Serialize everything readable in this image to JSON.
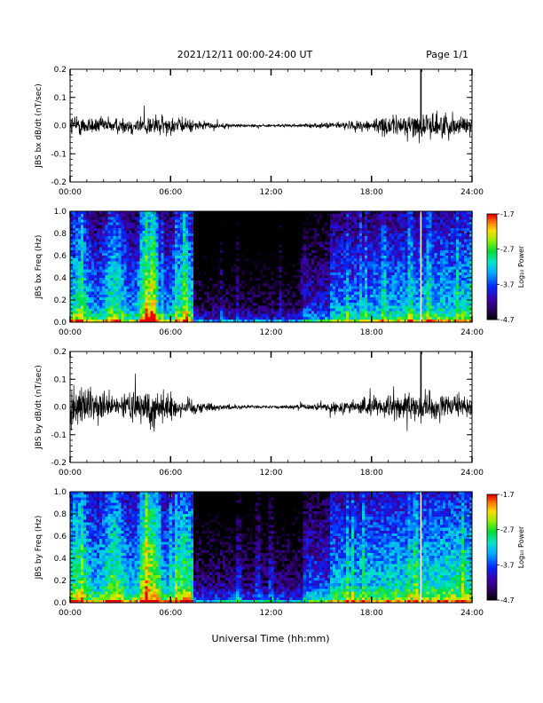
{
  "header": {
    "date_range": "2021/12/11  00:00-24:00 UT",
    "page": "Page 1/1"
  },
  "footer": {
    "xlabel": "Universal Time (hh:mm)"
  },
  "chart_data": [
    {
      "type": "line",
      "ylabel": "JBS bx dB/dt (nT/sec)",
      "xlim": [
        0,
        24
      ],
      "ylim": [
        -0.2,
        0.2
      ],
      "yticks": [
        "0.2",
        "0.1",
        "0.0",
        "-0.1",
        "-0.2"
      ],
      "xticks": [
        "00:00",
        "06:00",
        "12:00",
        "18:00",
        "24:00"
      ],
      "envelope_hours": [
        0,
        1,
        2,
        3,
        4,
        5,
        6,
        7,
        8,
        9,
        10,
        11,
        12,
        13,
        14,
        15,
        16,
        17,
        18,
        19,
        20,
        21,
        22,
        23,
        24
      ],
      "envelope_amplitude": [
        0.035,
        0.03,
        0.025,
        0.025,
        0.03,
        0.035,
        0.028,
        0.022,
        0.012,
        0.008,
        0.006,
        0.005,
        0.004,
        0.005,
        0.005,
        0.008,
        0.012,
        0.015,
        0.022,
        0.03,
        0.035,
        0.04,
        0.04,
        0.035,
        0.03
      ],
      "spike": {
        "hour": 20.95,
        "value": 0.2
      }
    },
    {
      "type": "heatmap",
      "ylabel": "JBS bx Freq (Hz)",
      "xlim": [
        0,
        24
      ],
      "ylim": [
        0,
        1
      ],
      "yticks": [
        "1.0",
        "0.8",
        "0.6",
        "0.4",
        "0.2",
        "0.0"
      ],
      "xticks": [
        "00:00",
        "06:00",
        "12:00",
        "18:00",
        "24:00"
      ],
      "colorbar": {
        "label": "Log₁₀ Power",
        "ticks": [
          "-1.7",
          "-2.7",
          "-3.7",
          "-4.7"
        ],
        "range": [
          -4.7,
          -1.7
        ]
      },
      "quiet_interval_hours": [
        7.3,
        14.0
      ],
      "gap_hour": 20.95
    },
    {
      "type": "line",
      "ylabel": "JBS by dB/dt (nT/sec)",
      "xlim": [
        0,
        24
      ],
      "ylim": [
        -0.2,
        0.2
      ],
      "yticks": [
        "0.2",
        "0.1",
        "0.0",
        "-0.1",
        "-0.2"
      ],
      "xticks": [
        "00:00",
        "06:00",
        "12:00",
        "18:00",
        "24:00"
      ],
      "envelope_hours": [
        0,
        1,
        2,
        3,
        4,
        5,
        6,
        7,
        8,
        9,
        10,
        11,
        12,
        13,
        14,
        15,
        16,
        17,
        18,
        19,
        20,
        21,
        22,
        23,
        24
      ],
      "envelope_amplitude": [
        0.06,
        0.055,
        0.04,
        0.035,
        0.05,
        0.07,
        0.045,
        0.03,
        0.015,
        0.01,
        0.007,
        0.005,
        0.004,
        0.006,
        0.008,
        0.012,
        0.018,
        0.025,
        0.03,
        0.035,
        0.04,
        0.045,
        0.04,
        0.035,
        0.03
      ],
      "spike": {
        "hour": 20.95,
        "value": 0.2
      }
    },
    {
      "type": "heatmap",
      "ylabel": "JBS by Freq (Hz)",
      "xlim": [
        0,
        24
      ],
      "ylim": [
        0,
        1
      ],
      "yticks": [
        "1.0",
        "0.8",
        "0.6",
        "0.4",
        "0.2",
        "0.0"
      ],
      "xticks": [
        "00:00",
        "06:00",
        "12:00",
        "18:00",
        "24:00"
      ],
      "colorbar": {
        "label": "Log₁₀ Power",
        "ticks": [
          "-1.7",
          "-2.7",
          "-3.7",
          "-4.7"
        ],
        "range": [
          -4.7,
          -1.7
        ]
      },
      "quiet_interval_hours": [
        7.3,
        14.0
      ],
      "gap_hour": 20.95
    }
  ]
}
